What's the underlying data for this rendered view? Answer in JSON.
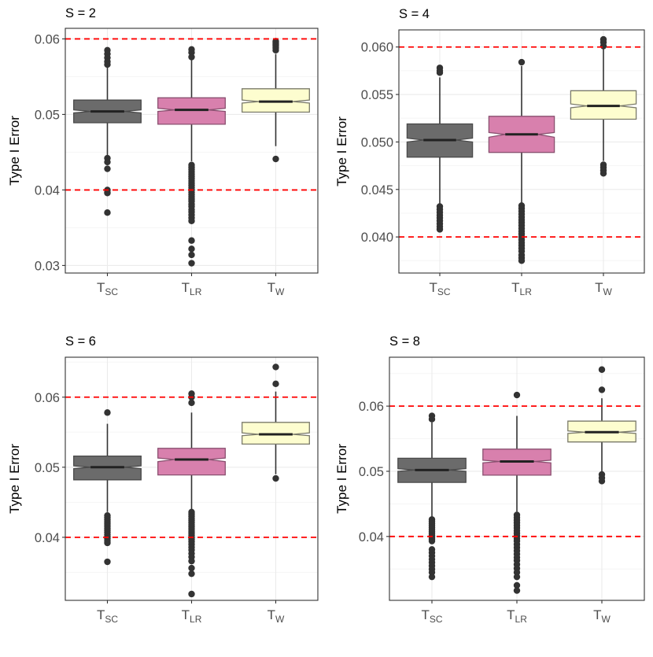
{
  "chart_data": [
    {
      "type": "boxplot",
      "title": "S = 2",
      "ylabel": "Type I Error",
      "xlabel": "",
      "categories": [
        {
          "main": "T",
          "sub": "SC"
        },
        {
          "main": "T",
          "sub": "LR"
        },
        {
          "main": "T",
          "sub": "W"
        }
      ],
      "ylim": [
        0.029,
        0.0614
      ],
      "yticks": [
        0.03,
        0.04,
        0.05,
        0.06
      ],
      "ytick_labels": [
        "0.03",
        "0.04",
        "0.05",
        "0.06"
      ],
      "reference_lines": [
        0.04,
        0.06
      ],
      "boxes": [
        {
          "q1": 0.0489,
          "median": 0.0504,
          "q3": 0.0519,
          "notch_low": 0.0502,
          "notch_high": 0.0506,
          "whisker_low": 0.0445,
          "whisker_high": 0.0565,
          "outliers": [
            0.0585,
            0.058,
            0.0575,
            0.057,
            0.0566,
            0.0442,
            0.0437,
            0.0428,
            0.04,
            0.0397,
            0.0396,
            0.037
          ]
        },
        {
          "q1": 0.0487,
          "median": 0.0506,
          "q3": 0.0522,
          "notch_low": 0.0504,
          "notch_high": 0.0508,
          "whisker_low": 0.0438,
          "whisker_high": 0.0572,
          "outliers": [
            0.0586,
            0.0582,
            0.0576,
            0.0433,
            0.043,
            0.0427,
            0.0424,
            0.0421,
            0.0418,
            0.0415,
            0.0412,
            0.0409,
            0.0406,
            0.0403,
            0.04,
            0.0397,
            0.0394,
            0.0391,
            0.0388,
            0.0385,
            0.0381,
            0.0378,
            0.0374,
            0.0371,
            0.0367,
            0.0363,
            0.0359,
            0.0333,
            0.0322,
            0.0314,
            0.0303
          ]
        },
        {
          "q1": 0.0503,
          "median": 0.0517,
          "q3": 0.0534,
          "notch_low": 0.0515,
          "notch_high": 0.0519,
          "whisker_low": 0.0458,
          "whisker_high": 0.058,
          "outliers": [
            0.0597,
            0.0595,
            0.0593,
            0.0591,
            0.0588,
            0.0585,
            0.0441
          ]
        }
      ]
    },
    {
      "type": "boxplot",
      "title": "S = 4",
      "ylabel": "Type I Error",
      "xlabel": "",
      "categories": [
        {
          "main": "T",
          "sub": "SC"
        },
        {
          "main": "T",
          "sub": "LR"
        },
        {
          "main": "T",
          "sub": "W"
        }
      ],
      "ylim": [
        0.0362,
        0.0618
      ],
      "yticks": [
        0.04,
        0.045,
        0.05,
        0.055,
        0.06
      ],
      "ytick_labels": [
        "0.040",
        "0.045",
        "0.050",
        "0.055",
        "0.060"
      ],
      "reference_lines": [
        0.04,
        0.06
      ],
      "boxes": [
        {
          "q1": 0.0484,
          "median": 0.0502,
          "q3": 0.0519,
          "notch_low": 0.05,
          "notch_high": 0.0504,
          "whisker_low": 0.0434,
          "whisker_high": 0.0568,
          "outliers": [
            0.0578,
            0.0575,
            0.0573,
            0.0432,
            0.0429,
            0.0426,
            0.0423,
            0.042,
            0.0417,
            0.0414,
            0.0411,
            0.0408
          ]
        },
        {
          "q1": 0.0489,
          "median": 0.0508,
          "q3": 0.0527,
          "notch_low": 0.0505,
          "notch_high": 0.051,
          "whisker_low": 0.0435,
          "whisker_high": 0.058,
          "outliers": [
            0.0584,
            0.0433,
            0.043,
            0.0427,
            0.0424,
            0.0421,
            0.0418,
            0.0415,
            0.0412,
            0.0409,
            0.0406,
            0.0403,
            0.04,
            0.0397,
            0.0394,
            0.0391,
            0.0388,
            0.0385,
            0.0381,
            0.0378,
            0.0375
          ]
        },
        {
          "q1": 0.0524,
          "median": 0.0538,
          "q3": 0.0554,
          "notch_low": 0.0536,
          "notch_high": 0.054,
          "whisker_low": 0.048,
          "whisker_high": 0.0598,
          "outliers": [
            0.0608,
            0.0605,
            0.0601,
            0.0476,
            0.0473,
            0.047,
            0.0467
          ]
        }
      ]
    },
    {
      "type": "boxplot",
      "title": "S = 6",
      "ylabel": "Type I Error",
      "xlabel": "",
      "categories": [
        {
          "main": "T",
          "sub": "SC"
        },
        {
          "main": "T",
          "sub": "LR"
        },
        {
          "main": "T",
          "sub": "W"
        }
      ],
      "ylim": [
        0.031,
        0.0657
      ],
      "yticks": [
        0.04,
        0.05,
        0.06
      ],
      "ytick_labels": [
        "0.04",
        "0.05",
        "0.06"
      ],
      "reference_lines": [
        0.04,
        0.06
      ],
      "boxes": [
        {
          "q1": 0.0482,
          "median": 0.05,
          "q3": 0.0516,
          "notch_low": 0.0498,
          "notch_high": 0.0502,
          "whisker_low": 0.0436,
          "whisker_high": 0.0562,
          "outliers": [
            0.0578,
            0.0431,
            0.0428,
            0.0425,
            0.0422,
            0.0419,
            0.0416,
            0.0413,
            0.041,
            0.0407,
            0.0404,
            0.0401,
            0.0398,
            0.0395,
            0.0392,
            0.0365
          ]
        },
        {
          "q1": 0.0489,
          "median": 0.0511,
          "q3": 0.0527,
          "notch_low": 0.0508,
          "notch_high": 0.0513,
          "whisker_low": 0.0438,
          "whisker_high": 0.0578,
          "outliers": [
            0.0605,
            0.06,
            0.0592,
            0.0436,
            0.0433,
            0.043,
            0.0427,
            0.0424,
            0.0421,
            0.0418,
            0.0415,
            0.0412,
            0.0409,
            0.0406,
            0.0403,
            0.04,
            0.0397,
            0.0394,
            0.039,
            0.0386,
            0.0382,
            0.0377,
            0.0372,
            0.0366,
            0.0356,
            0.0348,
            0.0319
          ]
        },
        {
          "q1": 0.0533,
          "median": 0.0547,
          "q3": 0.0564,
          "notch_low": 0.0545,
          "notch_high": 0.0549,
          "whisker_low": 0.049,
          "whisker_high": 0.0608,
          "outliers": [
            0.0643,
            0.0619,
            0.0484
          ]
        }
      ]
    },
    {
      "type": "boxplot",
      "title": "S = 8",
      "ylabel": "Type I Error",
      "xlabel": "",
      "categories": [
        {
          "main": "T",
          "sub": "SC"
        },
        {
          "main": "T",
          "sub": "LR"
        },
        {
          "main": "T",
          "sub": "W"
        }
      ],
      "ylim": [
        0.0302,
        0.0675
      ],
      "yticks": [
        0.04,
        0.05,
        0.06
      ],
      "ytick_labels": [
        "0.04",
        "0.05",
        "0.06"
      ],
      "reference_lines": [
        0.04,
        0.06
      ],
      "boxes": [
        {
          "q1": 0.0483,
          "median": 0.0502,
          "q3": 0.052,
          "notch_low": 0.05,
          "notch_high": 0.0504,
          "whisker_low": 0.0428,
          "whisker_high": 0.0575,
          "outliers": [
            0.0585,
            0.058,
            0.0426,
            0.0423,
            0.042,
            0.0417,
            0.0414,
            0.0411,
            0.0408,
            0.0405,
            0.0402,
            0.0399,
            0.0396,
            0.0393,
            0.038,
            0.0375,
            0.037,
            0.0365,
            0.036,
            0.0355,
            0.035,
            0.0345,
            0.0338
          ]
        },
        {
          "q1": 0.0494,
          "median": 0.0515,
          "q3": 0.0534,
          "notch_low": 0.0513,
          "notch_high": 0.0517,
          "whisker_low": 0.0438,
          "whisker_high": 0.0585,
          "outliers": [
            0.0617,
            0.0433,
            0.0429,
            0.0425,
            0.0421,
            0.0417,
            0.0413,
            0.0409,
            0.0405,
            0.0401,
            0.0397,
            0.0393,
            0.0388,
            0.0383,
            0.0378,
            0.0373,
            0.0368,
            0.0363,
            0.0357,
            0.0351,
            0.0345,
            0.0338,
            0.0325,
            0.0317
          ]
        },
        {
          "q1": 0.0545,
          "median": 0.056,
          "q3": 0.0577,
          "notch_low": 0.0558,
          "notch_high": 0.0562,
          "whisker_low": 0.05,
          "whisker_high": 0.0612,
          "outliers": [
            0.0656,
            0.0625,
            0.0495,
            0.049,
            0.0485
          ]
        }
      ]
    }
  ],
  "colors": {
    "panel_border": "#333333",
    "grid_major": "#ebebeb",
    "grid_minor": "#f5f5f5",
    "reference_line": "#ff0000",
    "whisker": "#333333",
    "outlier": "#333333",
    "box_fills": [
      "#6b6b6b",
      "#d880ad",
      "#fdfdcf"
    ],
    "box_borders": [
      "#4a4a4a",
      "#8a5070",
      "#7a7a6a"
    ],
    "median": "#222222",
    "tick_label": "#4d4d4d",
    "title": "#000000"
  }
}
